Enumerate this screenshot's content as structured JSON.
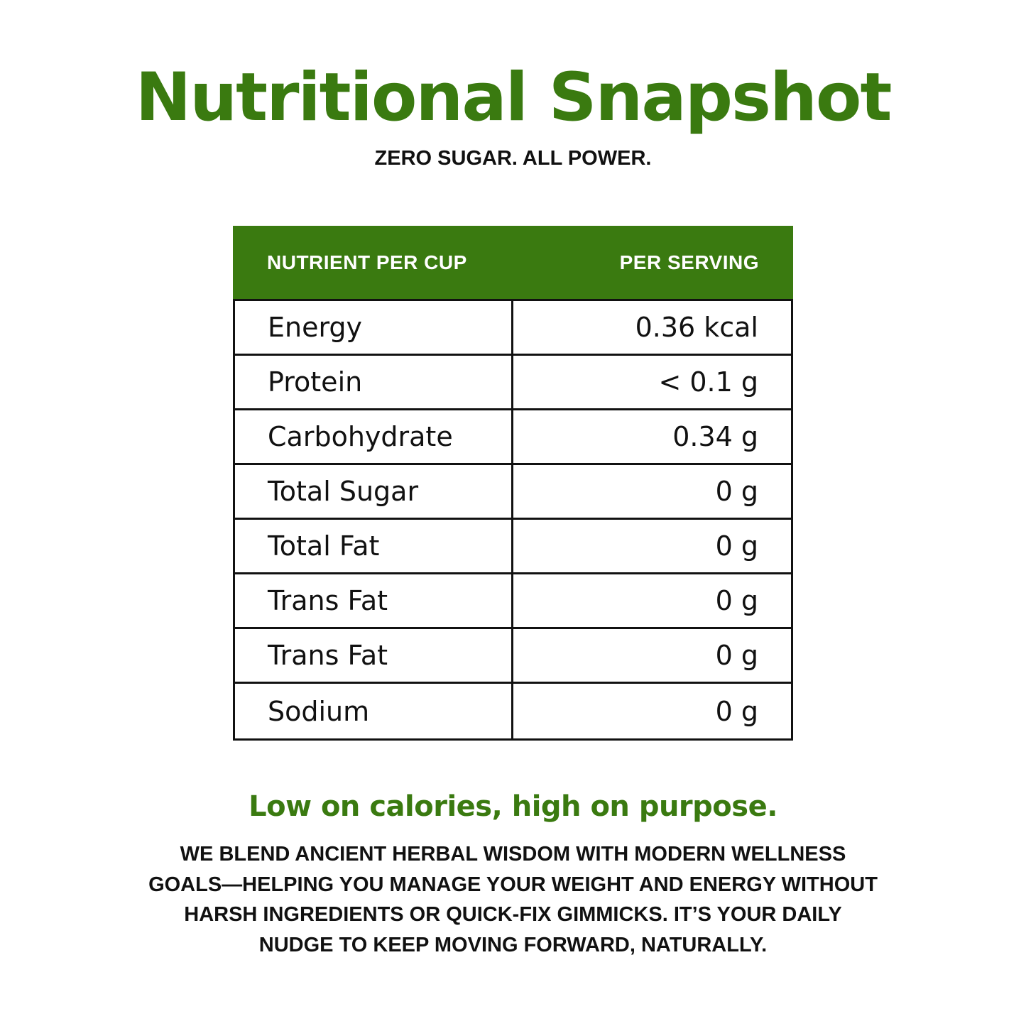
{
  "header": {
    "title": "Nutritional Snapshot",
    "subtitle": "ZERO SUGAR. ALL POWER."
  },
  "table": {
    "column_headers": [
      "NUTRIENT PER CUP",
      "PER SERVING"
    ],
    "rows": [
      {
        "nutrient": "Energy",
        "value": "0.36 kcal"
      },
      {
        "nutrient": "Protein",
        "value": "< 0.1 g"
      },
      {
        "nutrient": "Carbohydrate",
        "value": "0.34 g"
      },
      {
        "nutrient": "Total Sugar",
        "value": "0 g"
      },
      {
        "nutrient": "Total Fat",
        "value": "0 g"
      },
      {
        "nutrient": "Trans Fat",
        "value": "0 g"
      },
      {
        "nutrient": "Trans Fat",
        "value": "0 g"
      },
      {
        "nutrient": "Sodium",
        "value": "0 g"
      }
    ]
  },
  "footer": {
    "tagline": "Low on calories, high on purpose.",
    "description_lines": [
      "WE BLEND ANCIENT HERBAL WISDOM WITH MODERN WELLNESS",
      "GOALS—HELPING YOU MANAGE YOUR WEIGHT AND ENERGY WITHOUT",
      "HARSH INGREDIENTS OR QUICK-FIX GIMMICKS. IT’S YOUR DAILY",
      "NUDGE TO KEEP MOVING FORWARD, NATURALLY."
    ]
  },
  "colors": {
    "brand_green": "#3a7a10",
    "text_dark": "#111111",
    "header_text": "#ffffff"
  }
}
